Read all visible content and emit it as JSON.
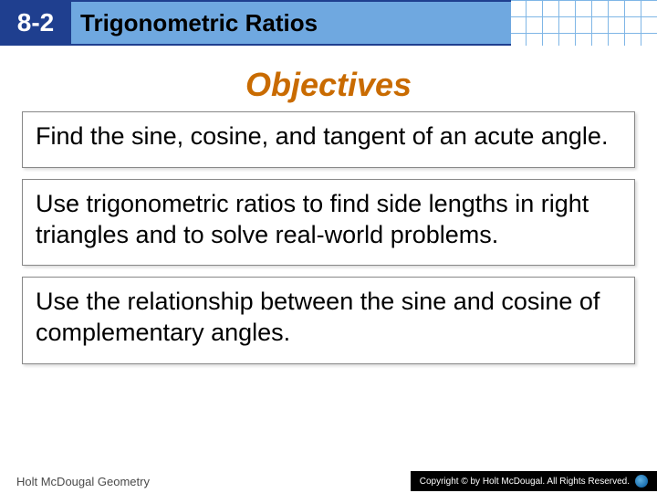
{
  "header": {
    "chapter": "8-2",
    "title": "Trigonometric Ratios",
    "chapter_bg": "#1f3f8f",
    "chapter_fg": "#ffffff",
    "titlebar_bg": "#6fa8e0",
    "title_color": "#000000",
    "grid_color": "#7fb6e6"
  },
  "objectives": {
    "heading": "Objectives",
    "heading_color": "#c96b00",
    "heading_fontsize": 36,
    "items": [
      "Find the sine, cosine, and tangent of an acute angle.",
      "Use trigonometric ratios to find side lengths in right triangles and to solve real-world problems.",
      "Use the relationship between the sine and cosine of complementary angles."
    ],
    "box_border": "#888888",
    "body_fontsize": 27
  },
  "footer": {
    "left": "Holt McDougal Geometry",
    "right": "Copyright © by Holt McDougal. All Rights Reserved."
  }
}
